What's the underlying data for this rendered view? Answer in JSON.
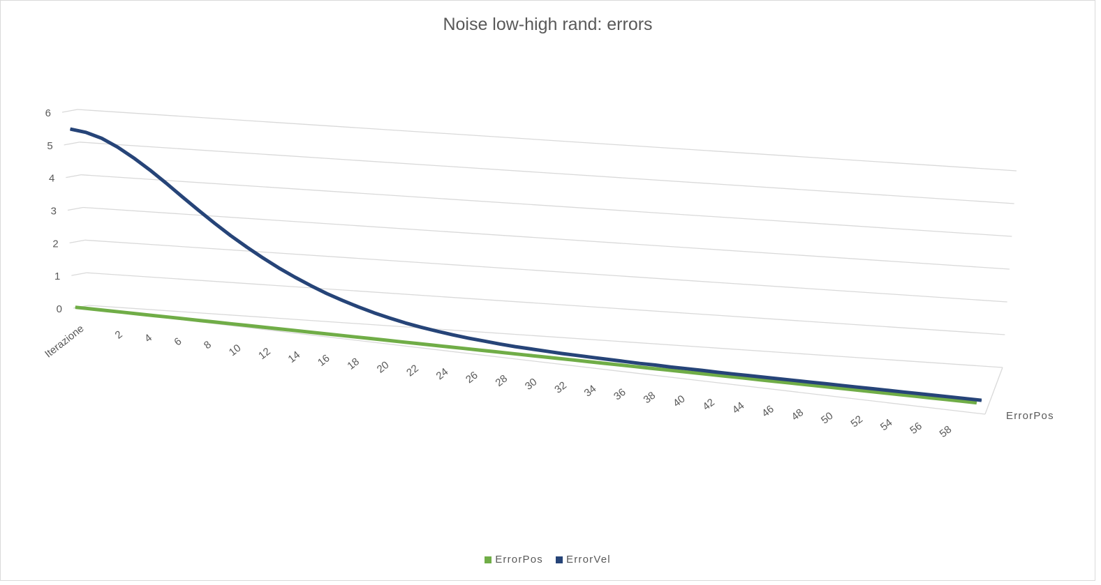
{
  "chart_data": {
    "type": "line",
    "title": "Noise low-high rand: errors",
    "x_axis_title": "Iterazione",
    "x_tick_labels": [
      "2",
      "4",
      "6",
      "8",
      "10",
      "12",
      "14",
      "16",
      "18",
      "20",
      "22",
      "24",
      "26",
      "28",
      "30",
      "32",
      "34",
      "36",
      "38",
      "40",
      "42",
      "44",
      "46",
      "48",
      "50",
      "52",
      "54",
      "56",
      "58"
    ],
    "y_tick_labels": [
      "0",
      "1",
      "2",
      "3",
      "4",
      "5",
      "6"
    ],
    "ylim": [
      0,
      6
    ],
    "depth_axis_label": "ErrorPos",
    "grid": true,
    "legend_position": "bottom",
    "x": [
      1,
      2,
      3,
      4,
      5,
      6,
      7,
      8,
      9,
      10,
      11,
      12,
      13,
      14,
      15,
      16,
      17,
      18,
      19,
      20,
      21,
      22,
      23,
      24,
      25,
      26,
      27,
      28,
      29,
      30,
      31,
      32,
      33,
      34,
      35,
      36,
      37,
      38,
      39,
      40,
      41,
      42,
      43,
      44,
      45,
      46,
      47,
      48,
      49,
      50,
      51,
      52,
      53,
      54,
      55,
      56,
      57,
      58,
      59
    ],
    "series": [
      {
        "name": "ErrorPos",
        "color": "#70ad47",
        "values": [
          0.02,
          0.02,
          0.02,
          0.02,
          0.02,
          0.02,
          0.02,
          0.02,
          0.02,
          0.02,
          0.02,
          0.02,
          0.02,
          0.02,
          0.02,
          0.02,
          0.02,
          0.02,
          0.02,
          0.02,
          0.02,
          0.02,
          0.02,
          0.02,
          0.02,
          0.02,
          0.02,
          0.02,
          0.02,
          0.02,
          0.02,
          0.02,
          0.02,
          0.02,
          0.02,
          0.02,
          0.02,
          0.02,
          0.02,
          0.02,
          0.02,
          0.02,
          0.02,
          0.02,
          0.02,
          0.02,
          0.02,
          0.02,
          0.02,
          0.02,
          0.02,
          0.02,
          0.02,
          0.02,
          0.02,
          0.02,
          0.02,
          0.02,
          0.02
        ]
      },
      {
        "name": "ErrorVel",
        "color": "#264478",
        "values": [
          5.4,
          5.35,
          5.22,
          5.0,
          4.72,
          4.4,
          4.05,
          3.68,
          3.32,
          2.97,
          2.64,
          2.34,
          2.06,
          1.8,
          1.57,
          1.36,
          1.17,
          1.01,
          0.86,
          0.73,
          0.62,
          0.52,
          0.44,
          0.37,
          0.31,
          0.26,
          0.22,
          0.18,
          0.15,
          0.13,
          0.11,
          0.09,
          0.08,
          0.07,
          0.06,
          0.05,
          0.04,
          0.04,
          0.03,
          0.03,
          0.03,
          0.02,
          0.02,
          0.02,
          0.02,
          0.02,
          0.02,
          0.02,
          0.02,
          0.02,
          0.02,
          0.02,
          0.02,
          0.02,
          0.02,
          0.02,
          0.02,
          0.02,
          0.02
        ]
      }
    ]
  }
}
